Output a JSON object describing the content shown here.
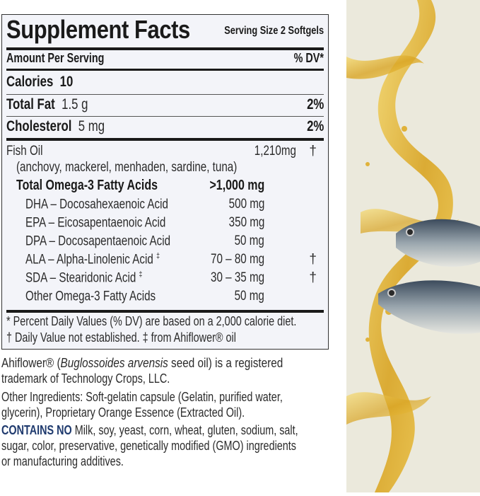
{
  "label": {
    "title": "Supplement Facts",
    "serving_size": "Serving Size 2 Softgels",
    "amount_per_serving": "Amount Per Serving",
    "dv_header": "% DV*",
    "calories": {
      "label": "Calories",
      "value": "10"
    },
    "total_fat": {
      "label": "Total Fat",
      "amount": "1.5 g",
      "dv": "2%"
    },
    "cholesterol": {
      "label": "Cholesterol",
      "amount": "5 mg",
      "dv": "2%"
    },
    "fish_oil": {
      "label": "Fish Oil",
      "amount": "1,210mg",
      "dv": "†",
      "sources": "(anchovy, mackerel, menhaden, sardine, tuna)"
    },
    "omega3_total": {
      "label": "Total Omega-3 Fatty Acids",
      "amount": ">1,000 mg"
    },
    "omega3_items": [
      {
        "label": "DHA – Docosahexaenoic Acid",
        "mark": "",
        "amount": "500 mg",
        "dv": ""
      },
      {
        "label": "EPA – Eicosapentaenoic Acid",
        "mark": "",
        "amount": "350 mg",
        "dv": ""
      },
      {
        "label": "DPA – Docosapentaenoic Acid",
        "mark": "",
        "amount": "50 mg",
        "dv": ""
      },
      {
        "label": "ALA – Alpha-Linolenic Acid",
        "mark": "‡",
        "amount": "70 – 80 mg",
        "dv": "†"
      },
      {
        "label": "SDA – Stearidonic Acid",
        "mark": "‡",
        "amount": "30 – 35 mg",
        "dv": "†"
      },
      {
        "label": "Other Omega-3 Fatty Acids",
        "mark": "",
        "amount": "50 mg",
        "dv": ""
      }
    ],
    "footnote_1": "* Percent Daily Values (% DV) are based on a 2,000 calorie diet.",
    "footnote_2": "† Daily Value not established. ‡ from Ahiflower® oil"
  },
  "below": {
    "trademark_a": "Ahiflower® (",
    "trademark_italic": "Buglossoides arvensis",
    "trademark_b": " seed oil) is a registered",
    "trademark_line2": "trademark of Technology Crops, LLC.",
    "other_ingredients_1": "Other Ingredients: Soft-gelatin capsule (Gelatin, purified water,",
    "other_ingredients_2": "glycerin), Proprietary Orange Essence (Extracted Oil).",
    "contains_no_label": "CONTAINS NO",
    "contains_no_1": " Milk, soy, yeast, corn, wheat, gluten, sodium, salt,",
    "contains_no_2": "sugar, color, preservative, genetically modified (GMO) ingredients",
    "contains_no_3": "or manufacturing additives."
  },
  "colors": {
    "accent": "#1f3a6e",
    "label_bg": "#f3f4f9",
    "photo_bg": "#ebe9dc",
    "oil": "#e2b52c"
  },
  "photo": {
    "subject": "fish-oil-splash-with-mackerel"
  }
}
